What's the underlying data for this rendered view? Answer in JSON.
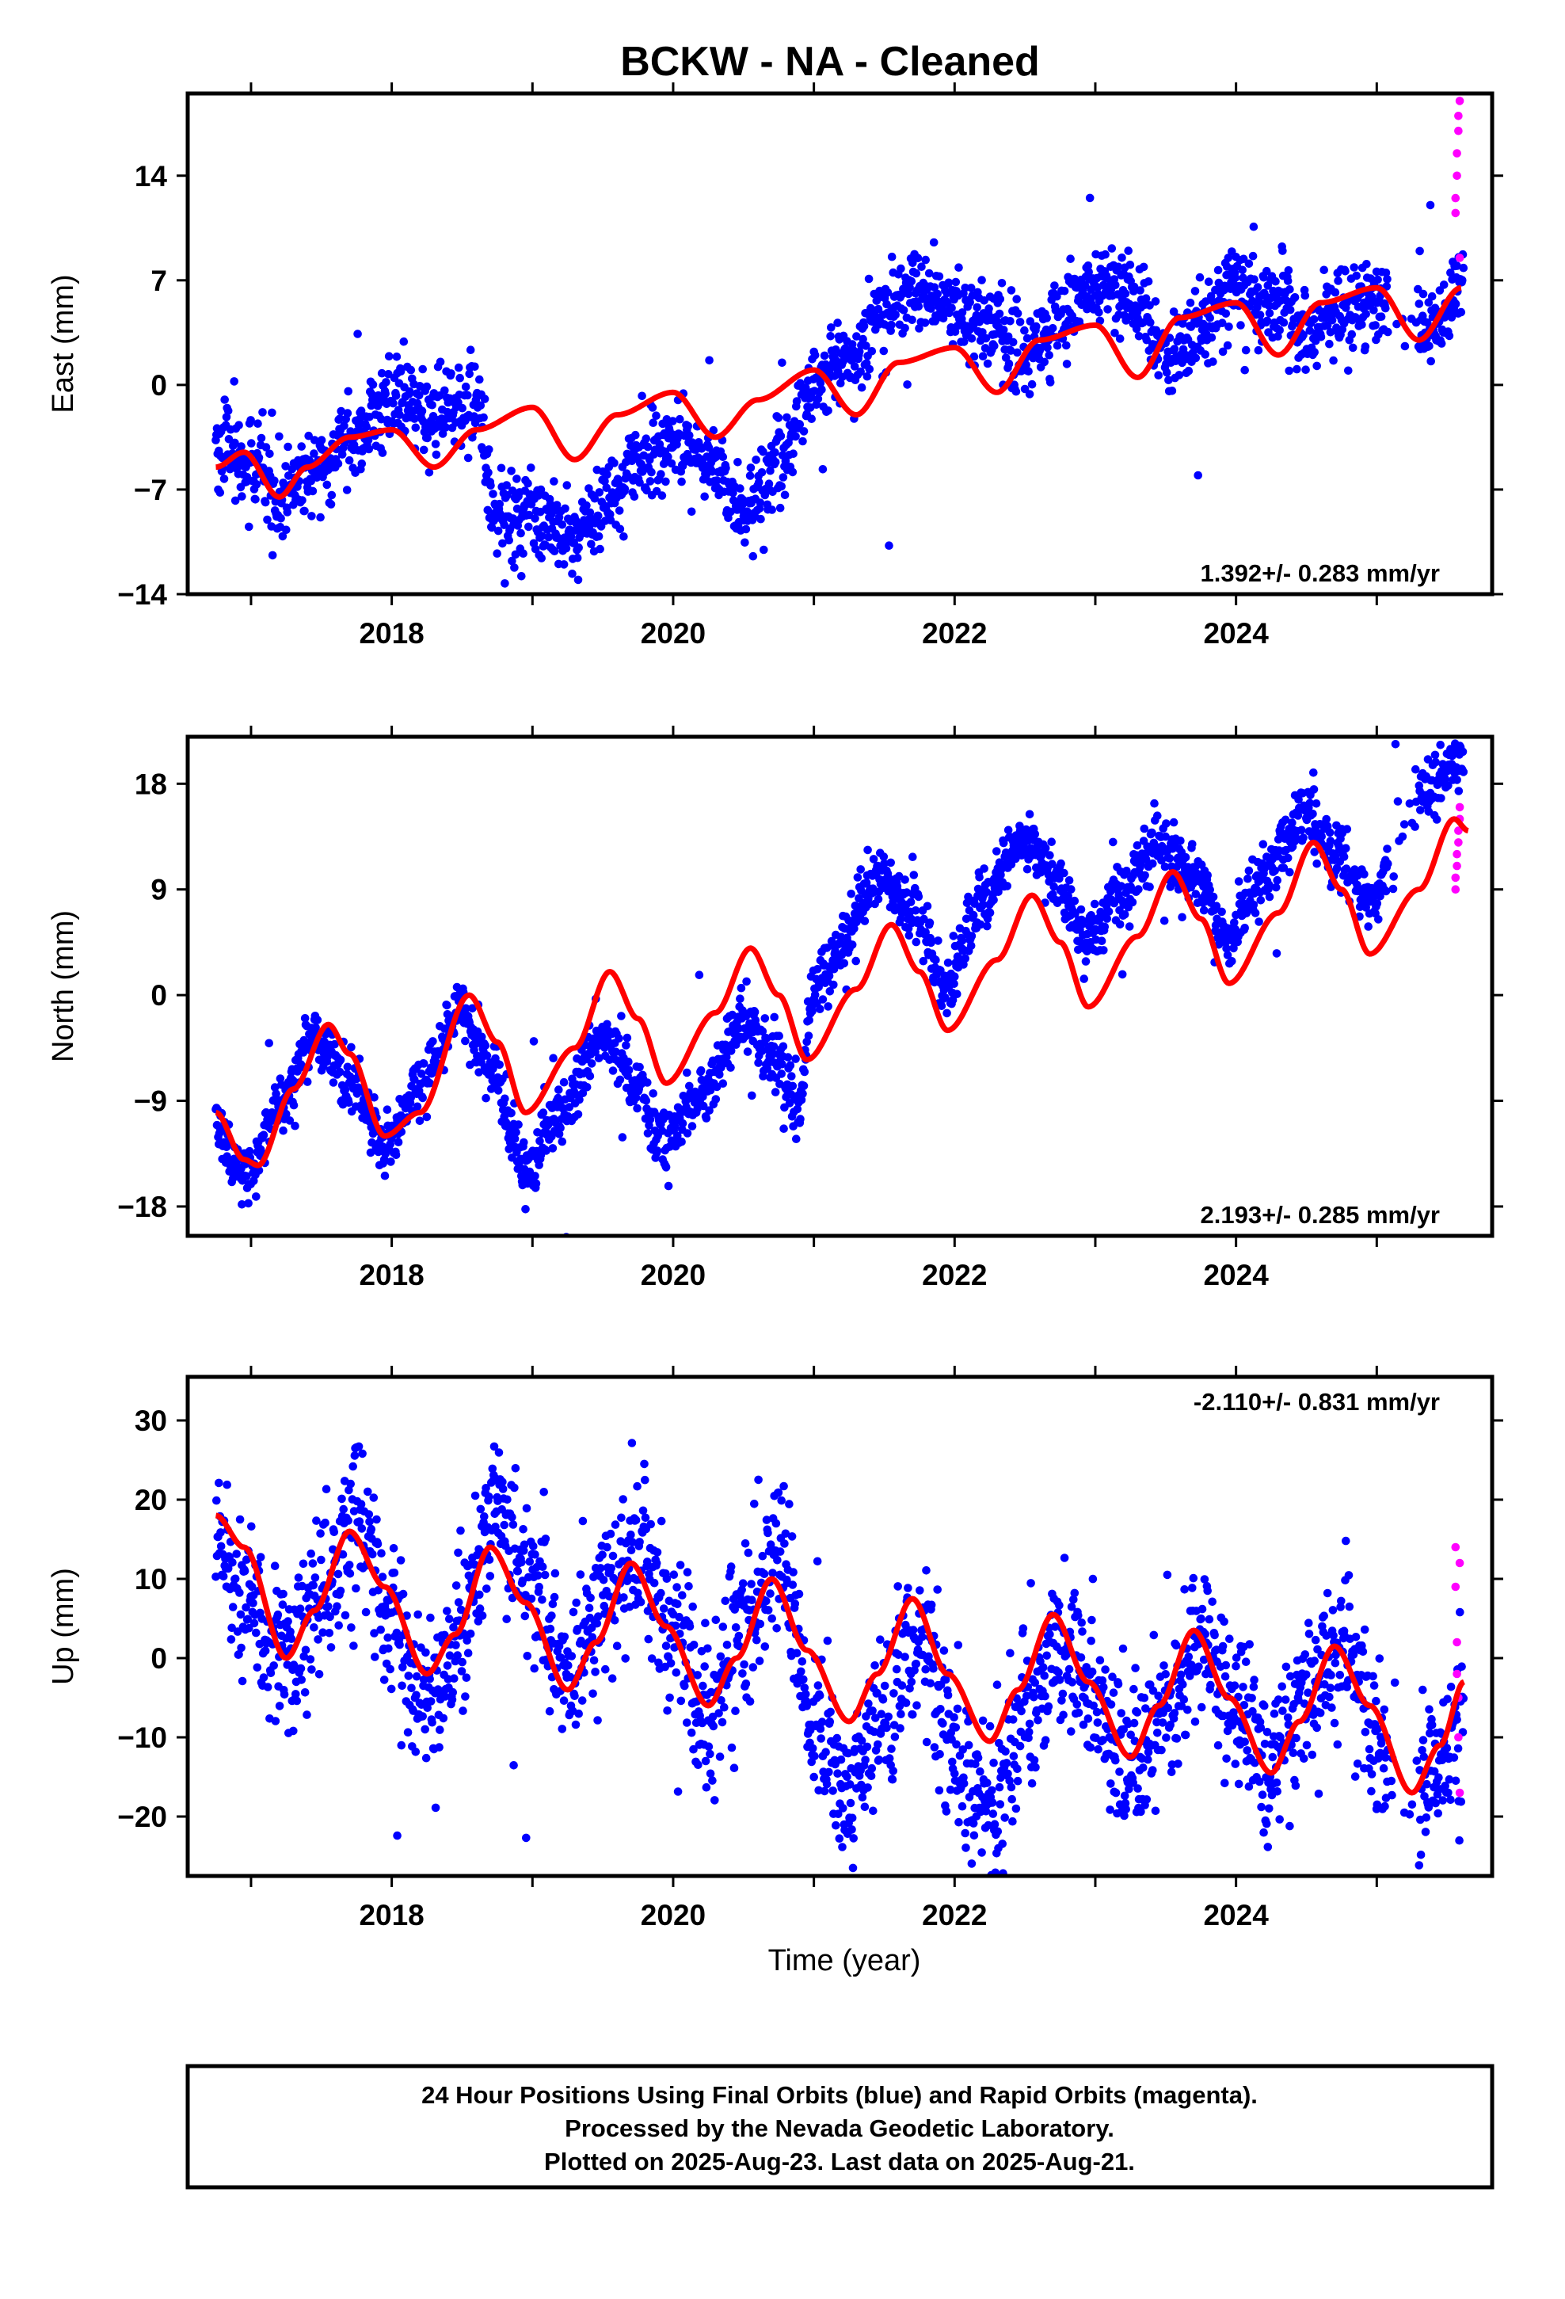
{
  "title": "BCKW  - NA - Cleaned",
  "xlabel": "Time (year)",
  "footer": [
    "24 Hour Positions Using Final Orbits (blue) and Rapid Orbits (magenta).",
    "Processed by the Nevada Geodetic Laboratory.",
    "Plotted on 2025-Aug-23. Last data on 2025-Aug-21."
  ],
  "colors": {
    "final_orbits": "#0000ff",
    "rapid_orbits": "#ff00ff",
    "model": "#ff0000",
    "frame": "#000000"
  },
  "chart_data": [
    {
      "type": "scatter",
      "component": "east",
      "ylabel": "East (mm)",
      "rate_text": "1.392+/- 0.283 mm/yr",
      "rate_position": "bottom-right",
      "xlim": [
        2016.55,
        2025.82
      ],
      "ylim": [
        -14,
        19.5
      ],
      "xticks": [
        2018,
        2020,
        2022,
        2024
      ],
      "xtick_labels": [
        "2018",
        "2020",
        "2022",
        "2024"
      ],
      "yticks": [
        -14,
        -7,
        0,
        7,
        14
      ],
      "ytick_labels": [
        "−14",
        "−7",
        "0",
        "7",
        "14"
      ],
      "grid": false,
      "final_orbit_trend": {
        "x": [
          2016.75,
          2017.0,
          2017.25,
          2017.5,
          2017.75,
          2018.0,
          2018.25,
          2018.5,
          2018.6,
          2018.75,
          2019.0,
          2019.25,
          2019.5,
          2019.75,
          2020.0,
          2020.25,
          2020.5,
          2020.75,
          2021.0,
          2021.25,
          2021.5,
          2021.75,
          2022.0,
          2022.25,
          2022.5,
          2022.75,
          2023.0,
          2023.25,
          2023.5,
          2023.75,
          2024.0,
          2024.25,
          2024.5,
          2024.75,
          2025.0,
          2025.2,
          2025.4,
          2025.6
        ],
        "y": [
          -4.0,
          -5.5,
          -7.0,
          -5.5,
          -3.0,
          -1.0,
          -2.0,
          -1.0,
          -1.0,
          -9.0,
          -8.5,
          -10.5,
          -8.0,
          -5.0,
          -3.5,
          -5.0,
          -8.5,
          -5.5,
          0.0,
          2.0,
          5.0,
          6.5,
          5.0,
          4.0,
          2.0,
          4.5,
          7.0,
          6.0,
          2.0,
          4.0,
          6.5,
          5.5,
          3.5,
          5.5,
          5.5,
          4.0,
          4.0,
          6.5
        ],
        "scatter_mm": 1.4
      },
      "rapid_orbits": {
        "x": [
          2025.56,
          2025.56,
          2025.57,
          2025.57,
          2025.58,
          2025.58,
          2025.59,
          2025.59
        ],
        "y": [
          11.5,
          12.5,
          14.0,
          15.5,
          17.0,
          18.0,
          19.0,
          8.5
        ]
      },
      "model": {
        "x": [
          2016.75,
          2016.95,
          2017.2,
          2017.4,
          2017.7,
          2018.0,
          2018.3,
          2018.6,
          2019.0,
          2019.3,
          2019.6,
          2020.0,
          2020.3,
          2020.6,
          2021.0,
          2021.3,
          2021.6,
          2022.0,
          2022.3,
          2022.6,
          2023.0,
          2023.3,
          2023.6,
          2024.0,
          2024.3,
          2024.6,
          2025.0,
          2025.3,
          2025.6
        ],
        "y": [
          -5.5,
          -4.5,
          -7.5,
          -5.5,
          -3.5,
          -3.0,
          -5.5,
          -3.0,
          -1.5,
          -5.0,
          -2.0,
          -0.5,
          -3.5,
          -1.0,
          1.0,
          -2.0,
          1.5,
          2.5,
          -0.5,
          3.0,
          4.0,
          0.5,
          4.5,
          5.5,
          2.0,
          5.5,
          6.5,
          3.0,
          6.5
        ]
      }
    },
    {
      "type": "scatter",
      "component": "north",
      "ylabel": "North (mm)",
      "rate_text": "2.193+/- 0.285 mm/yr",
      "rate_position": "bottom-right",
      "xlim": [
        2016.55,
        2025.82
      ],
      "ylim": [
        -20.5,
        22
      ],
      "xticks": [
        2018,
        2020,
        2022,
        2024
      ],
      "xtick_labels": [
        "2018",
        "2020",
        "2022",
        "2024"
      ],
      "yticks": [
        -18,
        -9,
        0,
        9,
        18
      ],
      "ytick_labels": [
        "−18",
        "−9",
        "0",
        "9",
        "18"
      ],
      "grid": false,
      "final_orbit_trend": {
        "x": [
          2016.75,
          2016.95,
          2017.2,
          2017.45,
          2017.7,
          2017.95,
          2018.2,
          2018.5,
          2018.7,
          2018.95,
          2019.2,
          2019.5,
          2019.7,
          2019.95,
          2020.2,
          2020.5,
          2020.7,
          2020.9,
          2021.0,
          2021.2,
          2021.45,
          2021.7,
          2021.95,
          2022.2,
          2022.5,
          2022.7,
          2022.95,
          2023.2,
          2023.45,
          2023.7,
          2023.95,
          2024.2,
          2024.5,
          2024.7,
          2024.95,
          2025.1,
          2025.2,
          2025.4,
          2025.6
        ],
        "y": [
          -11.0,
          -15.5,
          -9.5,
          -3.5,
          -7.5,
          -12.5,
          -8.0,
          -1.0,
          -6.0,
          -15.0,
          -10.0,
          -3.0,
          -7.0,
          -12.5,
          -8.5,
          -2.0,
          -5.0,
          -9.5,
          1.0,
          4.0,
          10.5,
          7.0,
          1.0,
          8.0,
          13.5,
          10.0,
          5.0,
          9.0,
          13.0,
          10.0,
          5.0,
          10.0,
          15.0,
          12.0,
          8.0,
          11.0,
          16.0,
          18.0,
          20.0
        ],
        "scatter_mm": 1.3
      },
      "rapid_orbits": {
        "x": [
          2025.56,
          2025.56,
          2025.57,
          2025.57,
          2025.58,
          2025.58,
          2025.59,
          2025.59
        ],
        "y": [
          9.0,
          10.0,
          11.0,
          12.0,
          13.0,
          14.0,
          15.0,
          16.0
        ]
      },
      "model": {
        "x": [
          2016.75,
          2016.95,
          2017.05,
          2017.3,
          2017.55,
          2017.7,
          2017.95,
          2018.2,
          2018.55,
          2018.75,
          2018.95,
          2019.3,
          2019.55,
          2019.75,
          2019.95,
          2020.3,
          2020.55,
          2020.75,
          2020.95,
          2021.3,
          2021.55,
          2021.75,
          2021.95,
          2022.3,
          2022.55,
          2022.75,
          2022.95,
          2023.3,
          2023.55,
          2023.75,
          2023.95,
          2024.3,
          2024.55,
          2024.75,
          2024.95,
          2025.3,
          2025.55,
          2025.65
        ],
        "y": [
          -10.0,
          -14.0,
          -14.5,
          -8.0,
          -2.5,
          -5.0,
          -12.0,
          -10.0,
          0.0,
          -4.0,
          -10.0,
          -4.5,
          2.0,
          -2.0,
          -7.5,
          -1.5,
          4.0,
          0.0,
          -5.5,
          0.5,
          6.0,
          2.0,
          -3.0,
          3.0,
          8.5,
          4.5,
          -1.0,
          5.0,
          10.5,
          6.5,
          1.0,
          7.0,
          13.0,
          9.0,
          3.5,
          9.0,
          15.0,
          14.0
        ]
      }
    },
    {
      "type": "scatter",
      "component": "up",
      "ylabel": "Up (mm)",
      "rate_text": "-2.110+/- 0.831 mm/yr",
      "rate_position": "top-right",
      "xlim": [
        2016.55,
        2025.82
      ],
      "ylim": [
        -27.5,
        35.5
      ],
      "xticks": [
        2018,
        2020,
        2022,
        2024
      ],
      "xtick_labels": [
        "2018",
        "2020",
        "2022",
        "2024"
      ],
      "yticks": [
        -20,
        -10,
        0,
        10,
        20,
        30
      ],
      "ytick_labels": [
        "−20",
        "−10",
        "0",
        "10",
        "20",
        "30"
      ],
      "grid": false,
      "final_orbit_trend": {
        "x": [
          2016.75,
          2016.95,
          2017.25,
          2017.5,
          2017.75,
          2018.0,
          2018.25,
          2018.5,
          2018.75,
          2019.0,
          2019.25,
          2019.5,
          2019.75,
          2020.0,
          2020.25,
          2020.5,
          2020.75,
          2021.0,
          2021.25,
          2021.5,
          2021.75,
          2022.0,
          2022.25,
          2022.5,
          2022.75,
          2023.0,
          2023.25,
          2023.5,
          2023.75,
          2024.0,
          2024.25,
          2024.5,
          2024.75,
          2025.0,
          2025.25,
          2025.5,
          2025.6
        ],
        "y": [
          16.0,
          8.0,
          -1.0,
          8.0,
          17.0,
          4.0,
          -6.0,
          5.0,
          19.0,
          9.0,
          -3.0,
          7.0,
          15.0,
          4.0,
          -7.0,
          5.0,
          14.0,
          -8.0,
          -17.0,
          -6.0,
          3.0,
          -12.0,
          -19.0,
          -8.0,
          2.0,
          -6.0,
          -14.0,
          -6.0,
          1.0,
          -6.0,
          -14.0,
          -5.0,
          1.0,
          -10.0,
          -17.0,
          -12.0,
          -6.0
        ],
        "scatter_mm": 5.0
      },
      "rapid_orbits": {
        "x": [
          2025.56,
          2025.56,
          2025.57,
          2025.57,
          2025.58,
          2025.58,
          2025.59,
          2025.59
        ],
        "y": [
          14.0,
          9.0,
          2.0,
          -2.0,
          -5.0,
          -10.0,
          -17.0,
          12.0
        ]
      },
      "model": {
        "x": [
          2016.75,
          2016.95,
          2017.25,
          2017.45,
          2017.7,
          2017.95,
          2018.25,
          2018.45,
          2018.7,
          2018.95,
          2019.25,
          2019.45,
          2019.7,
          2019.95,
          2020.25,
          2020.45,
          2020.7,
          2020.95,
          2021.25,
          2021.45,
          2021.7,
          2021.95,
          2022.25,
          2022.45,
          2022.7,
          2022.95,
          2023.25,
          2023.45,
          2023.7,
          2023.95,
          2024.25,
          2024.45,
          2024.7,
          2024.95,
          2025.25,
          2025.45,
          2025.62
        ],
        "y": [
          18.0,
          14.0,
          0.0,
          6.0,
          16.0,
          9.0,
          -2.0,
          3.0,
          14.0,
          7.0,
          -4.0,
          2.0,
          12.0,
          4.0,
          -6.0,
          0.0,
          10.0,
          1.0,
          -8.0,
          -2.0,
          7.5,
          -2.0,
          -10.5,
          -4.0,
          5.5,
          -3.0,
          -12.5,
          -6.0,
          3.5,
          -5.0,
          -14.5,
          -8.0,
          1.5,
          -6.0,
          -17.0,
          -11.0,
          -3.0
        ]
      }
    }
  ]
}
